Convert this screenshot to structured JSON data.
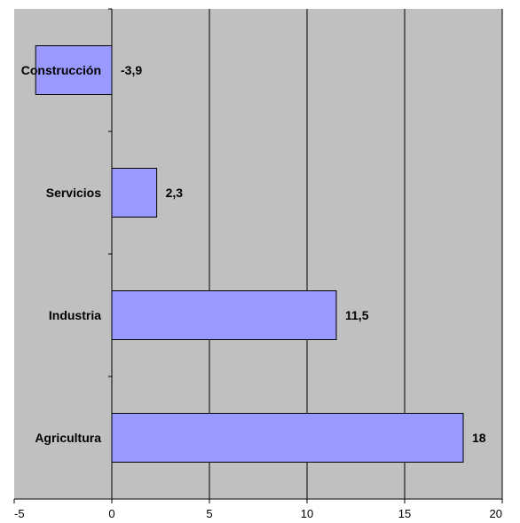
{
  "chart_data": {
    "type": "bar",
    "orientation": "horizontal",
    "categories": [
      "Construcción",
      "Servicios",
      "Industria",
      "Agricultura"
    ],
    "values": [
      -3.9,
      2.3,
      11.5,
      18
    ],
    "value_labels": [
      "-3,9",
      "2,3",
      "11,5",
      "18"
    ],
    "xlim": [
      -5,
      20
    ],
    "xticks": [
      -5,
      0,
      5,
      10,
      15,
      20
    ],
    "xtick_labels": [
      "-5",
      "0",
      "5",
      "10",
      "15",
      "20"
    ],
    "grid": "vertical",
    "legend": "none",
    "colors": {
      "plot_background": "#c0c0c0",
      "bar_fill": "#9999ff",
      "bar_stroke": "#000000",
      "gridline": "#000000"
    }
  }
}
